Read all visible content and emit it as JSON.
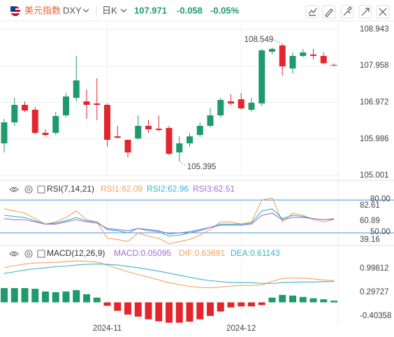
{
  "header": {
    "name": "美元指数",
    "symbol": "DXY",
    "period": "日K",
    "price": "107.971",
    "change": "-0.058",
    "change_pct": "-0.05%"
  },
  "chart_data": [
    {
      "type": "candlestick",
      "up_color": "#1f9a6c",
      "down_color": "#e3262d",
      "categories": [
        null,
        null,
        null,
        null,
        null,
        null,
        null,
        null,
        null,
        null,
        "2024-11",
        null,
        null,
        null,
        null,
        null,
        null,
        null,
        null,
        null,
        null,
        null,
        null,
        "2024-12",
        null,
        null,
        null,
        null,
        null,
        null,
        null,
        null,
        null
      ],
      "open": [
        105.868,
        106.434,
        106.906,
        106.774,
        106.151,
        106.151,
        106.623,
        107.095,
        107.0,
        106.944,
        106.906,
        106.057,
        105.963,
        106.0,
        106.34,
        106.264,
        106.283,
        105.623,
        105.868,
        106.095,
        106.34,
        106.623,
        107.0,
        107.057,
        106.774,
        106.944,
        108.34,
        108.51,
        107.887,
        108.226,
        108.264,
        108.226,
        107.985
      ],
      "high": [
        106.529,
        107.095,
        107.0,
        106.849,
        106.246,
        106.717,
        107.227,
        108.226,
        107.321,
        107.623,
        106.944,
        106.34,
        105.963,
        106.623,
        106.491,
        106.623,
        106.34,
        106.057,
        106.151,
        106.434,
        106.812,
        107.095,
        107.189,
        107.227,
        107.095,
        108.415,
        108.453,
        108.549,
        108.321,
        108.415,
        108.415,
        108.321,
        108.02
      ],
      "low": [
        105.623,
        106.34,
        106.717,
        106.113,
        106.057,
        106.095,
        106.566,
        107.0,
        106.529,
        106.491,
        105.774,
        106.0,
        105.491,
        105.963,
        106.151,
        106.189,
        105.548,
        105.395,
        105.774,
        106.038,
        106.302,
        106.566,
        106.906,
        106.774,
        106.717,
        106.868,
        108.264,
        107.698,
        107.755,
        108.189,
        108.132,
        108.0,
        107.95
      ],
      "close": [
        106.434,
        106.906,
        106.755,
        106.151,
        106.095,
        106.604,
        107.132,
        107.566,
        106.906,
        106.906,
        105.963,
        106.019,
        105.623,
        106.34,
        106.246,
        106.227,
        105.586,
        105.868,
        106.057,
        106.34,
        106.623,
        107.038,
        106.944,
        106.812,
        106.963,
        108.377,
        108.415,
        107.943,
        108.226,
        108.321,
        108.226,
        108.029,
        107.971
      ],
      "annotations": {
        "high": 108.549,
        "low": 105.395
      },
      "ylim": [
        104.869,
        109.169
      ],
      "yticks": [
        108.943,
        107.958,
        106.972,
        105.986,
        105.001
      ],
      "grid": true
    },
    {
      "type": "line",
      "title": "RSI(7,14,21)",
      "ylim": [
        39.16,
        82.61
      ],
      "yticks": [
        82.61,
        60.89,
        39.16
      ],
      "ref_lines": [
        {
          "value": 80,
          "label": "80.00"
        },
        {
          "value": 50,
          "label": "50.00"
        }
      ],
      "ref_color": "#4a8fe0",
      "series": [
        {
          "name": "RSI1:62.09",
          "color": "#f3a15b",
          "values": [
            72,
            70,
            68,
            63,
            58,
            60,
            64,
            70,
            62,
            60,
            45,
            44,
            42,
            50,
            47,
            45,
            40,
            42,
            44,
            48,
            53,
            60,
            60,
            58,
            60,
            80,
            82,
            60,
            68,
            66,
            62,
            60,
            62.09
          ]
        },
        {
          "name": "RSI2:62.96",
          "color": "#38b5c6",
          "values": [
            66,
            65,
            64,
            61,
            58,
            59,
            61,
            64,
            61,
            60,
            53,
            52,
            50,
            54,
            52,
            51,
            47,
            48,
            50,
            52,
            55,
            58,
            58,
            58,
            59,
            70,
            72,
            63,
            66,
            65,
            63,
            62,
            62.96
          ]
        },
        {
          "name": "RSI3:62.51",
          "color": "#9a6fd5",
          "values": [
            63,
            62,
            62,
            60,
            58,
            58,
            60,
            62,
            60,
            59,
            54,
            53,
            52,
            54,
            53,
            52,
            49,
            50,
            51,
            53,
            55,
            57,
            57,
            57,
            58,
            66,
            68,
            62,
            64,
            64,
            63,
            62,
            62.51
          ]
        }
      ]
    },
    {
      "type": "bar",
      "title": "MACD(12,26,9)",
      "up_color": "#1f9a6c",
      "down_color": "#e3262d",
      "ylim": [
        -0.65,
        1.245
      ],
      "yticks": [
        0.99812,
        0.29727,
        -0.40358
      ],
      "series": [
        {
          "name": "MACD:0.05095",
          "color": "#9a6fd5",
          "type": "bar",
          "values": [
            0.42,
            0.42,
            0.42,
            0.4,
            0.32,
            0.3,
            0.32,
            0.36,
            0.24,
            0.14,
            -0.1,
            -0.25,
            -0.36,
            -0.42,
            -0.5,
            -0.56,
            -0.6,
            -0.6,
            -0.57,
            -0.5,
            -0.4,
            -0.27,
            -0.15,
            -0.12,
            -0.12,
            -0.08,
            0.14,
            0.22,
            0.2,
            0.16,
            0.12,
            0.09,
            0.05095
          ]
        },
        {
          "name": "DIF:0.63691",
          "color": "#f3a15b",
          "type": "line",
          "values": [
            1.02,
            1.08,
            1.13,
            1.16,
            1.17,
            1.18,
            1.2,
            1.22,
            1.21,
            1.19,
            1.1,
            1.0,
            0.9,
            0.82,
            0.74,
            0.66,
            0.58,
            0.52,
            0.47,
            0.44,
            0.43,
            0.45,
            0.48,
            0.5,
            0.5,
            0.51,
            0.62,
            0.7,
            0.72,
            0.71,
            0.69,
            0.66,
            0.63691
          ]
        },
        {
          "name": "DEA:0.61143",
          "color": "#38b5c6",
          "type": "line",
          "values": [
            0.85,
            0.9,
            0.95,
            0.99,
            1.02,
            1.05,
            1.07,
            1.1,
            1.12,
            1.13,
            1.12,
            1.1,
            1.06,
            1.02,
            0.97,
            0.92,
            0.86,
            0.8,
            0.74,
            0.68,
            0.64,
            0.61,
            0.59,
            0.58,
            0.58,
            0.56,
            0.56,
            0.58,
            0.59,
            0.6,
            0.6,
            0.61,
            0.61143
          ]
        }
      ]
    }
  ]
}
